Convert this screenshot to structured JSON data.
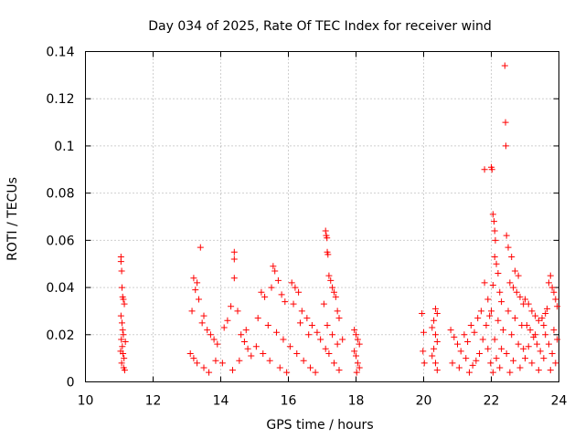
{
  "chart_data": {
    "type": "scatter",
    "title": "Day 034 of 2025, Rate Of TEC Index for receiver wind",
    "xlabel": "GPS time / hours",
    "ylabel": "ROTI / TECUs",
    "xlim": [
      10,
      24
    ],
    "ylim": [
      0,
      0.14
    ],
    "x_ticks": [
      10,
      12,
      14,
      16,
      18,
      20,
      22,
      24
    ],
    "x_tick_labels": [
      "10",
      "12",
      "14",
      "16",
      "18",
      "20",
      "22",
      "24"
    ],
    "y_ticks": [
      0,
      0.02,
      0.04,
      0.06,
      0.08,
      0.1,
      0.12,
      0.14
    ],
    "y_tick_labels": [
      "0",
      "0.02",
      "0.04",
      "0.06",
      "0.08",
      "0.1",
      "0.12",
      "0.14"
    ],
    "grid": true,
    "marker": "+",
    "series_color": "#ff0000",
    "series": [
      {
        "name": "ROTI",
        "points": [
          [
            11.05,
            0.053
          ],
          [
            11.05,
            0.051
          ],
          [
            11.07,
            0.047
          ],
          [
            11.08,
            0.04
          ],
          [
            11.1,
            0.036
          ],
          [
            11.12,
            0.035
          ],
          [
            11.15,
            0.033
          ],
          [
            11.05,
            0.028
          ],
          [
            11.08,
            0.025
          ],
          [
            11.1,
            0.022
          ],
          [
            11.12,
            0.02
          ],
          [
            11.06,
            0.018
          ],
          [
            11.09,
            0.015
          ],
          [
            11.11,
            0.012
          ],
          [
            11.14,
            0.01
          ],
          [
            11.07,
            0.008
          ],
          [
            11.13,
            0.006
          ],
          [
            11.16,
            0.005
          ],
          [
            11.04,
            0.013
          ],
          [
            11.18,
            0.017
          ],
          [
            13.4,
            0.057
          ],
          [
            13.2,
            0.044
          ],
          [
            13.3,
            0.042
          ],
          [
            13.25,
            0.039
          ],
          [
            13.35,
            0.035
          ],
          [
            13.15,
            0.03
          ],
          [
            13.5,
            0.028
          ],
          [
            13.45,
            0.025
          ],
          [
            13.6,
            0.022
          ],
          [
            13.7,
            0.02
          ],
          [
            13.8,
            0.018
          ],
          [
            13.9,
            0.016
          ],
          [
            13.1,
            0.012
          ],
          [
            13.2,
            0.01
          ],
          [
            13.3,
            0.008
          ],
          [
            13.5,
            0.006
          ],
          [
            13.65,
            0.004
          ],
          [
            13.85,
            0.009
          ],
          [
            14.4,
            0.055
          ],
          [
            14.4,
            0.052
          ],
          [
            14.4,
            0.044
          ],
          [
            14.3,
            0.032
          ],
          [
            14.5,
            0.03
          ],
          [
            14.2,
            0.026
          ],
          [
            14.1,
            0.023
          ],
          [
            14.6,
            0.02
          ],
          [
            14.7,
            0.017
          ],
          [
            14.8,
            0.014
          ],
          [
            14.9,
            0.011
          ],
          [
            14.05,
            0.008
          ],
          [
            14.35,
            0.005
          ],
          [
            14.55,
            0.009
          ],
          [
            14.75,
            0.022
          ],
          [
            15.2,
            0.038
          ],
          [
            15.3,
            0.036
          ],
          [
            15.55,
            0.049
          ],
          [
            15.6,
            0.047
          ],
          [
            15.7,
            0.043
          ],
          [
            15.5,
            0.04
          ],
          [
            15.8,
            0.037
          ],
          [
            15.9,
            0.034
          ],
          [
            15.1,
            0.027
          ],
          [
            15.4,
            0.024
          ],
          [
            15.65,
            0.021
          ],
          [
            15.85,
            0.018
          ],
          [
            15.05,
            0.015
          ],
          [
            15.25,
            0.012
          ],
          [
            15.45,
            0.009
          ],
          [
            15.75,
            0.006
          ],
          [
            15.95,
            0.004
          ],
          [
            16.1,
            0.042
          ],
          [
            16.2,
            0.04
          ],
          [
            16.3,
            0.038
          ],
          [
            16.15,
            0.033
          ],
          [
            16.4,
            0.03
          ],
          [
            16.55,
            0.027
          ],
          [
            16.7,
            0.024
          ],
          [
            16.85,
            0.021
          ],
          [
            16.95,
            0.018
          ],
          [
            16.05,
            0.015
          ],
          [
            16.25,
            0.012
          ],
          [
            16.45,
            0.009
          ],
          [
            16.65,
            0.006
          ],
          [
            16.8,
            0.004
          ],
          [
            16.35,
            0.025
          ],
          [
            16.6,
            0.02
          ],
          [
            17.1,
            0.064
          ],
          [
            17.12,
            0.062
          ],
          [
            17.14,
            0.061
          ],
          [
            17.15,
            0.055
          ],
          [
            17.17,
            0.054
          ],
          [
            17.2,
            0.045
          ],
          [
            17.25,
            0.043
          ],
          [
            17.3,
            0.04
          ],
          [
            17.35,
            0.038
          ],
          [
            17.4,
            0.036
          ],
          [
            17.05,
            0.033
          ],
          [
            17.45,
            0.03
          ],
          [
            17.5,
            0.027
          ],
          [
            17.15,
            0.024
          ],
          [
            17.3,
            0.02
          ],
          [
            17.45,
            0.016
          ],
          [
            17.2,
            0.012
          ],
          [
            17.35,
            0.008
          ],
          [
            17.5,
            0.005
          ],
          [
            17.1,
            0.014
          ],
          [
            17.6,
            0.018
          ],
          [
            17.95,
            0.022
          ],
          [
            18.0,
            0.02
          ],
          [
            18.05,
            0.018
          ],
          [
            18.1,
            0.016
          ],
          [
            17.95,
            0.013
          ],
          [
            18.0,
            0.011
          ],
          [
            18.05,
            0.008
          ],
          [
            18.1,
            0.006
          ],
          [
            18.02,
            0.004
          ],
          [
            19.95,
            0.029
          ],
          [
            20.0,
            0.021
          ],
          [
            19.98,
            0.013
          ],
          [
            20.02,
            0.008
          ],
          [
            20.35,
            0.031
          ],
          [
            20.4,
            0.029
          ],
          [
            20.3,
            0.026
          ],
          [
            20.25,
            0.023
          ],
          [
            20.35,
            0.02
          ],
          [
            20.4,
            0.017
          ],
          [
            20.3,
            0.014
          ],
          [
            20.25,
            0.011
          ],
          [
            20.35,
            0.008
          ],
          [
            20.4,
            0.005
          ],
          [
            20.8,
            0.022
          ],
          [
            20.9,
            0.019
          ],
          [
            21.0,
            0.016
          ],
          [
            21.1,
            0.013
          ],
          [
            21.2,
            0.02
          ],
          [
            21.3,
            0.017
          ],
          [
            21.4,
            0.024
          ],
          [
            21.5,
            0.021
          ],
          [
            21.6,
            0.027
          ],
          [
            21.7,
            0.03
          ],
          [
            20.85,
            0.008
          ],
          [
            21.05,
            0.006
          ],
          [
            21.25,
            0.01
          ],
          [
            21.45,
            0.007
          ],
          [
            21.65,
            0.012
          ],
          [
            21.35,
            0.004
          ],
          [
            21.55,
            0.009
          ],
          [
            21.75,
            0.018
          ],
          [
            21.8,
            0.09
          ],
          [
            21.8,
            0.042
          ],
          [
            21.9,
            0.035
          ],
          [
            21.95,
            0.028
          ],
          [
            21.85,
            0.024
          ],
          [
            21.9,
            0.014
          ],
          [
            21.98,
            0.008
          ],
          [
            22.0,
            0.091
          ],
          [
            22.02,
            0.09
          ],
          [
            22.05,
            0.071
          ],
          [
            22.08,
            0.068
          ],
          [
            22.1,
            0.064
          ],
          [
            22.12,
            0.06
          ],
          [
            22.1,
            0.053
          ],
          [
            22.15,
            0.05
          ],
          [
            22.2,
            0.046
          ],
          [
            22.05,
            0.041
          ],
          [
            22.25,
            0.038
          ],
          [
            22.3,
            0.034
          ],
          [
            22.0,
            0.03
          ],
          [
            22.2,
            0.026
          ],
          [
            22.35,
            0.022
          ],
          [
            22.1,
            0.018
          ],
          [
            22.3,
            0.014
          ],
          [
            22.15,
            0.01
          ],
          [
            22.25,
            0.006
          ],
          [
            22.05,
            0.004
          ],
          [
            22.4,
            0.134
          ],
          [
            22.42,
            0.11
          ],
          [
            22.43,
            0.1
          ],
          [
            22.45,
            0.062
          ],
          [
            22.5,
            0.057
          ],
          [
            22.6,
            0.053
          ],
          [
            22.7,
            0.047
          ],
          [
            22.8,
            0.045
          ],
          [
            22.55,
            0.042
          ],
          [
            22.65,
            0.04
          ],
          [
            22.75,
            0.038
          ],
          [
            22.85,
            0.036
          ],
          [
            22.95,
            0.033
          ],
          [
            22.5,
            0.03
          ],
          [
            22.7,
            0.027
          ],
          [
            22.9,
            0.024
          ],
          [
            22.6,
            0.02
          ],
          [
            22.8,
            0.016
          ],
          [
            22.45,
            0.012
          ],
          [
            22.65,
            0.009
          ],
          [
            22.85,
            0.006
          ],
          [
            22.55,
            0.004
          ],
          [
            22.95,
            0.014
          ],
          [
            23.0,
            0.035
          ],
          [
            23.1,
            0.033
          ],
          [
            23.2,
            0.03
          ],
          [
            23.3,
            0.028
          ],
          [
            23.4,
            0.026
          ],
          [
            23.05,
            0.024
          ],
          [
            23.15,
            0.022
          ],
          [
            23.25,
            0.019
          ],
          [
            23.35,
            0.016
          ],
          [
            23.45,
            0.013
          ],
          [
            23.0,
            0.01
          ],
          [
            23.2,
            0.008
          ],
          [
            23.4,
            0.005
          ],
          [
            23.1,
            0.015
          ],
          [
            23.3,
            0.02
          ],
          [
            23.5,
            0.027
          ],
          [
            23.55,
            0.024
          ],
          [
            23.6,
            0.029
          ],
          [
            23.65,
            0.031
          ],
          [
            23.7,
            0.042
          ],
          [
            23.75,
            0.045
          ],
          [
            23.8,
            0.04
          ],
          [
            23.85,
            0.038
          ],
          [
            23.9,
            0.035
          ],
          [
            23.95,
            0.032
          ],
          [
            23.6,
            0.02
          ],
          [
            23.7,
            0.016
          ],
          [
            23.8,
            0.012
          ],
          [
            23.9,
            0.008
          ],
          [
            23.75,
            0.005
          ],
          [
            23.55,
            0.01
          ],
          [
            23.85,
            0.022
          ],
          [
            23.95,
            0.018
          ]
        ]
      }
    ]
  }
}
